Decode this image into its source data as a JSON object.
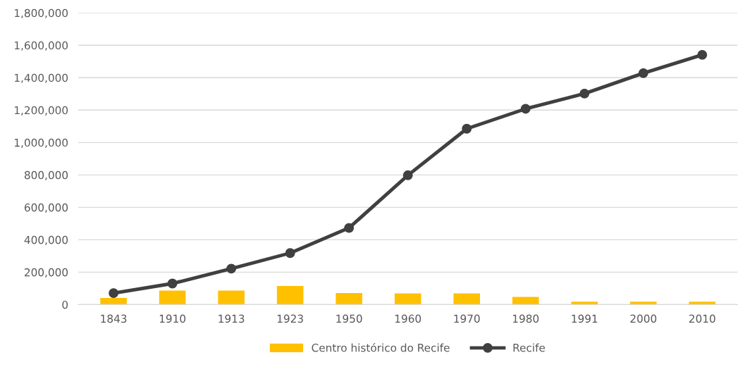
{
  "chart_data": {
    "type": "bar",
    "categories": [
      "1843",
      "1910",
      "1913",
      "1923",
      "1950",
      "1960",
      "1970",
      "1980",
      "1991",
      "2000",
      "2010"
    ],
    "series": [
      {
        "name": "Centro histórico do Recife",
        "color": "#ffc000",
        "values": [
          41000,
          87000,
          87000,
          115000,
          71000,
          69000,
          69000,
          47000,
          18000,
          18000,
          18000
        ]
      },
      {
        "name": "Recife",
        "type": "line",
        "color": "#404040",
        "marker": "circle",
        "values": [
          71000,
          130000,
          222000,
          318000,
          473000,
          798000,
          1085000,
          1208000,
          1302000,
          1428000,
          1541000
        ]
      }
    ],
    "ylim": [
      0,
      1800000
    ],
    "yticks": [
      {
        "value": 0,
        "label": "0"
      },
      {
        "value": 200000,
        "label": "200,000"
      },
      {
        "value": 400000,
        "label": "400,000"
      },
      {
        "value": 600000,
        "label": "600,000"
      },
      {
        "value": 800000,
        "label": "800,000"
      },
      {
        "value": 1000000,
        "label": "1,000,000"
      },
      {
        "value": 1200000,
        "label": "1,200,000"
      },
      {
        "value": 1400000,
        "label": "1,400,000"
      },
      {
        "value": 1600000,
        "label": "1,600,000"
      },
      {
        "value": 1800000,
        "label": "1,800,000"
      }
    ],
    "grid": "y",
    "legend": "bottom"
  }
}
